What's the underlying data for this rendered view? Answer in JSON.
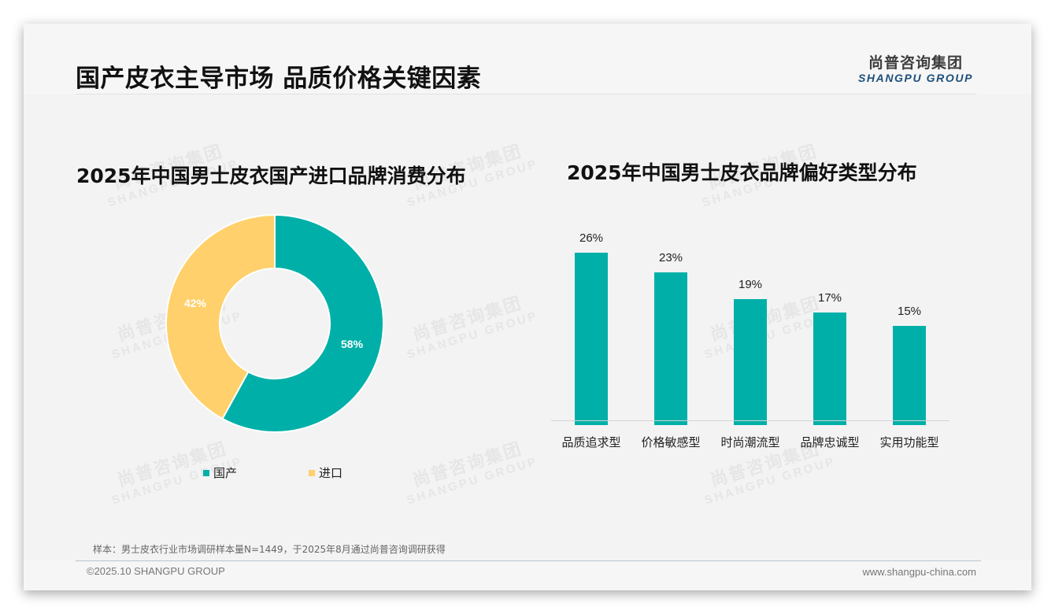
{
  "header": {
    "title": "国产皮衣主导市场 品质价格关键因素",
    "logo_cn": "尚普咨询集团",
    "logo_en": "SHANGPU GROUP"
  },
  "watermark": {
    "cn": "尚普咨询集团",
    "en": "SHANGPU GROUP"
  },
  "colors": {
    "teal": "#00b0a8",
    "yellow": "#ffd06b",
    "background": "#f3f3f3",
    "logo_blue": "#1d4f7a"
  },
  "left_chart": {
    "title": "2025年中国男士皮衣国产进口品牌消费分布",
    "slices": [
      {
        "label": "国产",
        "value": 58,
        "display": "58%",
        "color": "#00b0a8"
      },
      {
        "label": "进口",
        "value": 42,
        "display": "42%",
        "color": "#ffd06b"
      }
    ],
    "legend": [
      {
        "label": "国产",
        "color": "#00b0a8"
      },
      {
        "label": "进口",
        "color": "#ffd06b"
      }
    ]
  },
  "right_chart": {
    "title": "2025年中国男士皮衣品牌偏好类型分布",
    "bars": [
      {
        "label": "品质追求型",
        "value": 26,
        "display": "26%"
      },
      {
        "label": "价格敏感型",
        "value": 23,
        "display": "23%"
      },
      {
        "label": "时尚潮流型",
        "value": 19,
        "display": "19%"
      },
      {
        "label": "品牌忠诚型",
        "value": 17,
        "display": "17%"
      },
      {
        "label": "实用功能型",
        "value": 15,
        "display": "15%"
      }
    ]
  },
  "footer": {
    "note": "样本：男士皮衣行业市场调研样本量N=1449，于2025年8月通过尚普咨询调研获得",
    "copyright": "©2025.10 SHANGPU GROUP",
    "website": "www.shangpu-china.com"
  },
  "chart_data": [
    {
      "type": "pie",
      "title": "2025年中国男士皮衣国产进口品牌消费分布",
      "categories": [
        "国产",
        "进口"
      ],
      "values": [
        58,
        42
      ],
      "unit": "%",
      "donut": true,
      "legend_position": "bottom"
    },
    {
      "type": "bar",
      "title": "2025年中国男士皮衣品牌偏好类型分布",
      "categories": [
        "品质追求型",
        "价格敏感型",
        "时尚潮流型",
        "品牌忠诚型",
        "实用功能型"
      ],
      "values": [
        26,
        23,
        19,
        17,
        15
      ],
      "unit": "%",
      "xlabel": "",
      "ylabel": "",
      "ylim": [
        0,
        30
      ],
      "grid": false,
      "data_labels": true
    }
  ]
}
